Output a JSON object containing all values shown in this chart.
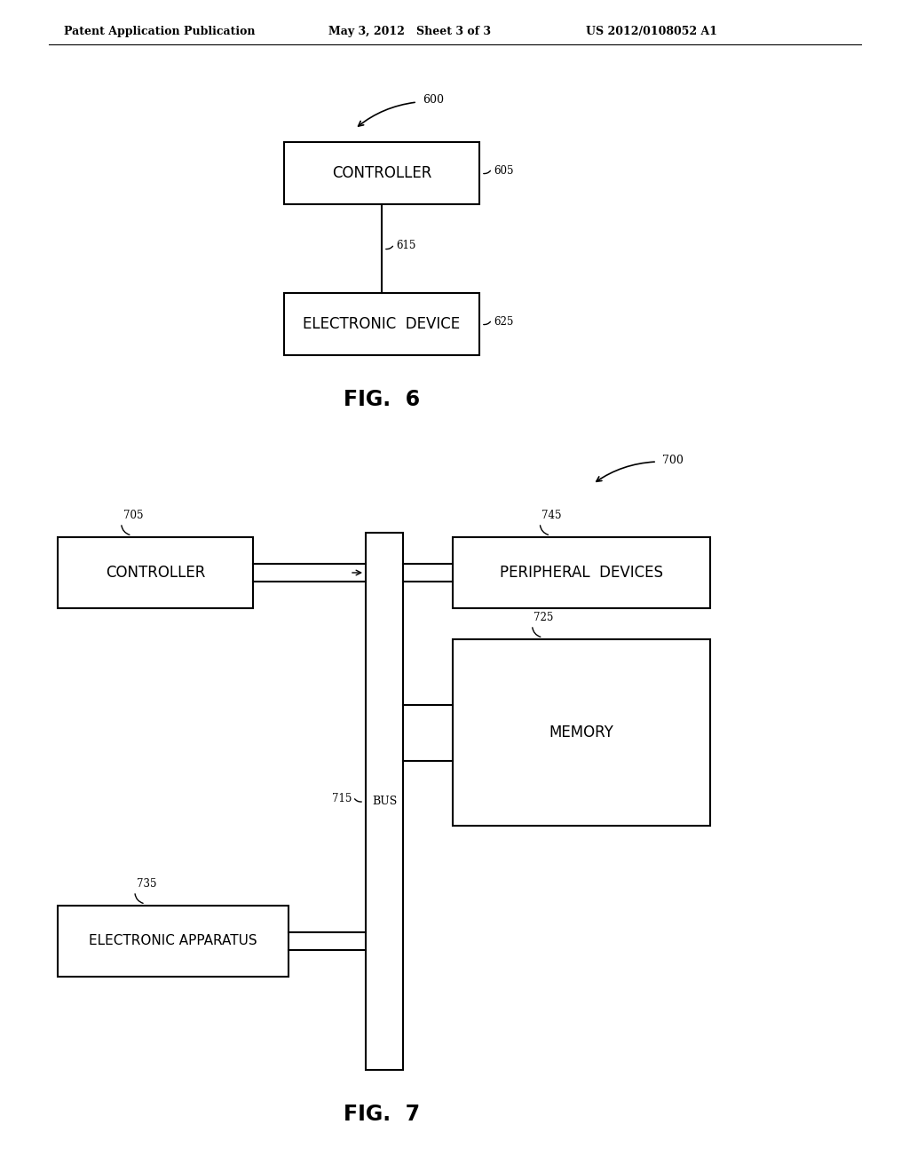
{
  "bg_color": "#ffffff",
  "text_color": "#000000",
  "line_color": "#000000",
  "header_left": "Patent Application Publication",
  "header_center": "May 3, 2012   Sheet 3 of 3",
  "header_right": "US 2012/0108052 A1",
  "fig6_caption": "FIG.  6",
  "fig7_caption": "FIG.  7"
}
